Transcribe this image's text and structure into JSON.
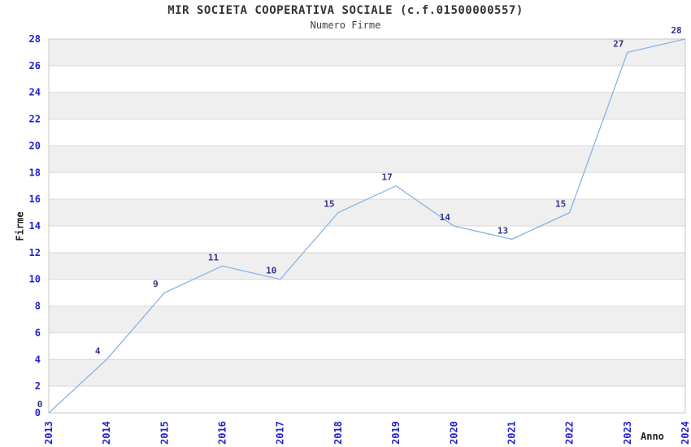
{
  "chart_data": {
    "type": "line",
    "title": "MIR SOCIETA COOPERATIVA SOCIALE (c.f.01500000557)",
    "subtitle": "Numero Firme",
    "categories": [
      "2013",
      "2014",
      "2015",
      "2016",
      "2017",
      "2018",
      "2019",
      "2020",
      "2021",
      "2022",
      "2023",
      "2024"
    ],
    "values": [
      0,
      4,
      9,
      11,
      10,
      15,
      17,
      14,
      13,
      15,
      27,
      28
    ],
    "xlabel": "Anno",
    "ylabel": "Firme",
    "ylim": [
      0,
      28
    ],
    "ytick_step": 2,
    "grid": true,
    "legend": "none",
    "point_labels_visible": true,
    "colors": {
      "line": "#85b5e5",
      "band": "#efefef",
      "grid": "#d9d9d9",
      "border": "#c9c9c9",
      "tick_label": "#2222cc",
      "point_label": "#333388",
      "title": "#333333",
      "axis_label": "#222222",
      "background": "#ffffff"
    }
  }
}
